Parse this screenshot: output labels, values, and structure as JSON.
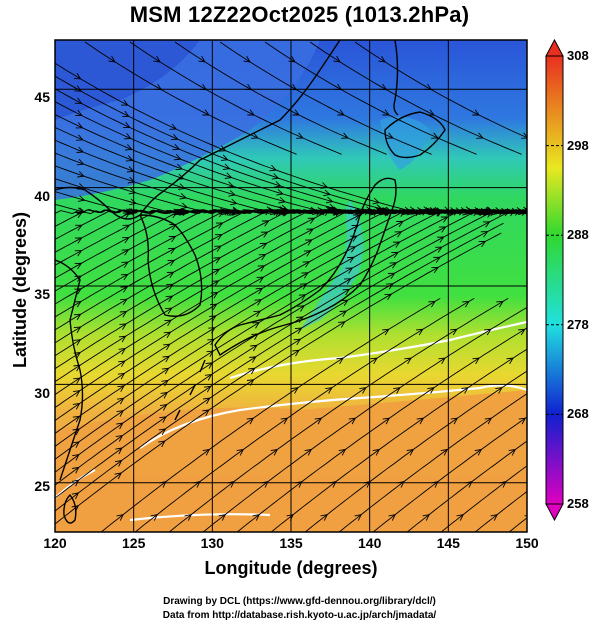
{
  "title": "MSM 12Z22Oct2025 (1013.2hPa)",
  "x_axis": {
    "label": "Longitude (degrees)",
    "ticks": [
      "120",
      "125",
      "130",
      "135",
      "140",
      "145",
      "150"
    ]
  },
  "y_axis": {
    "label": "Latitude  (degrees)",
    "ticks": [
      "45",
      "40",
      "35",
      "30",
      "25"
    ]
  },
  "colorbar": {
    "ticks": [
      "308",
      "298",
      "288",
      "278",
      "268",
      "258"
    ]
  },
  "credits": {
    "line1": "Drawing by DCL (https://www.gfd-dennou.org/library/dcl/)",
    "line2": "Data from http://database.rish.kyoto-u.ac.jp/arch/jmadata/"
  },
  "map_extent": {
    "lon": [
      120,
      150
    ],
    "lat": [
      22.5,
      47.5
    ]
  },
  "colors": {
    "cold": "#2a5ad8",
    "mild": "#2fd86a",
    "warm": "#e6e630",
    "hot": "#f0a040",
    "contour": "#ffffff",
    "streamline": "#000000"
  }
}
